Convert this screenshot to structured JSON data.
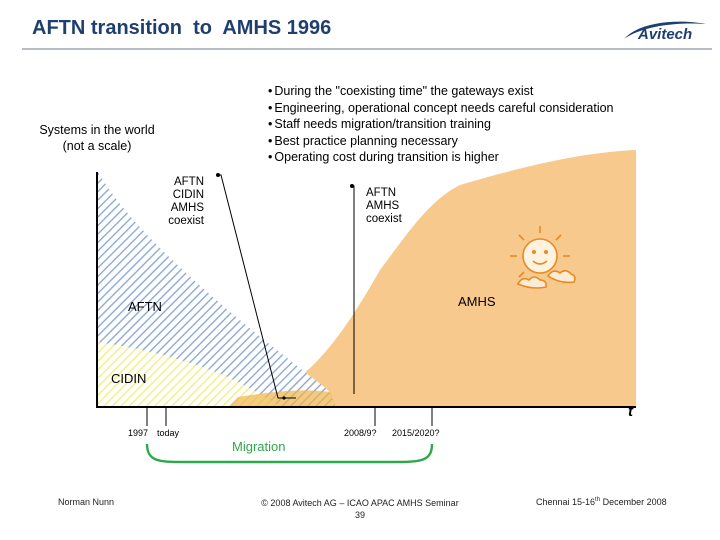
{
  "slide": {
    "title": "AFTN transition  to  AMHS 1996",
    "logo_text": "Avitech"
  },
  "bullets": [
    "During the \"coexisting time\" the gateways exist",
    "Engineering, operational concept needs careful consideration",
    "Staff needs migration/transition training",
    "Best practice planning necessary",
    "Operating cost during transition is higher"
  ],
  "systems_label": [
    "Systems in the world",
    "(not a scale)"
  ],
  "diagram": {
    "coexist_1": [
      "AFTN",
      "CIDIN",
      "AMHS",
      "coexist"
    ],
    "coexist_2": [
      "AFTN",
      "AMHS",
      "coexist"
    ],
    "region_labels": {
      "aftn": "AFTN",
      "amhs": "AMHS",
      "cidin": "CIDIN"
    },
    "axis_label": "t",
    "ticks": [
      "1997",
      "today",
      "2008/9?",
      "2015/2020?"
    ],
    "migration_label": "Migration"
  },
  "colors": {
    "title": "#1f3f6f",
    "amhs_fill": "#f7c98d",
    "aftn_hatch": "#7f9fd0",
    "cidin_hatch": "#f2ee7a",
    "migration": "#2ea84a",
    "sun": "#e88a23"
  },
  "footer": {
    "author": "Norman Nunn",
    "copyright": "© 2008 Avitech AG – ICAO APAC AMHS Seminar",
    "page": "39",
    "event_prefix": "Chennai 15-16",
    "event_sup": "th",
    "event_suffix": " December 2008"
  }
}
